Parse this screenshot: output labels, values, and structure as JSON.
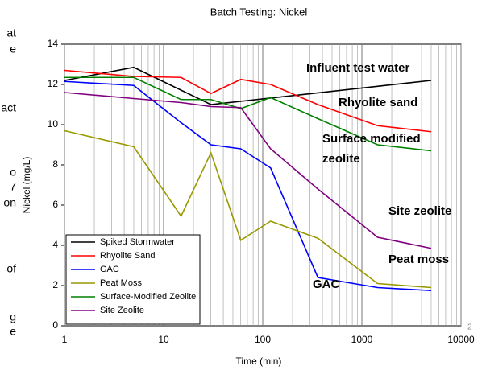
{
  "chart_data": {
    "type": "line",
    "title": "Batch Testing: Nickel",
    "x_label": "Time (min)",
    "y_label": "Nickel (mg/L)",
    "x": [
      1,
      5,
      15,
      30,
      60,
      120,
      360,
      1440,
      5000
    ],
    "xscale": "log",
    "xlim": [
      1,
      10000
    ],
    "xticks": [
      1,
      10,
      100,
      1000,
      10000
    ],
    "ylim": [
      0,
      14
    ],
    "yticks": [
      0,
      2,
      4,
      6,
      8,
      10,
      12,
      14
    ],
    "grid": true,
    "legend": "lower left",
    "series": [
      {
        "name": "Spiked Stormwater",
        "color": "#000000",
        "values": [
          12.2,
          12.85,
          null,
          11.0,
          null,
          null,
          null,
          null,
          12.2
        ]
      },
      {
        "name": "Rhyolite Sand",
        "color": "#ff0000",
        "values": [
          12.7,
          12.4,
          12.35,
          11.55,
          12.25,
          12.0,
          11.0,
          9.95,
          9.65
        ]
      },
      {
        "name": "GAC",
        "color": "#0000ff",
        "values": [
          12.15,
          11.95,
          10.1,
          9.0,
          8.8,
          7.85,
          2.4,
          1.9,
          1.75
        ]
      },
      {
        "name": "Peat Moss",
        "color": "#999900",
        "values": [
          9.7,
          8.9,
          5.45,
          8.6,
          4.25,
          5.2,
          4.35,
          2.1,
          1.9
        ]
      },
      {
        "name": "Surface-Modified Zeolite",
        "color": "#008000",
        "values": [
          12.35,
          12.35,
          11.25,
          11.25,
          10.8,
          11.35,
          10.3,
          9.0,
          8.7
        ]
      },
      {
        "name": "Site Zeolite",
        "color": "#800080",
        "values": [
          11.6,
          11.3,
          11.1,
          10.9,
          10.85,
          8.8,
          6.8,
          4.4,
          3.85
        ]
      }
    ],
    "annotations": [
      "Influent test water",
      "Rhyolite sand",
      "Surface modified",
      "zeolite",
      "Site zeolite",
      "Peat moss",
      "GAC"
    ]
  },
  "page": {
    "side_text": [
      "at",
      "e",
      "act",
      "o",
      "7",
      "on",
      "of",
      "g",
      "e"
    ],
    "slide_number": "2"
  }
}
